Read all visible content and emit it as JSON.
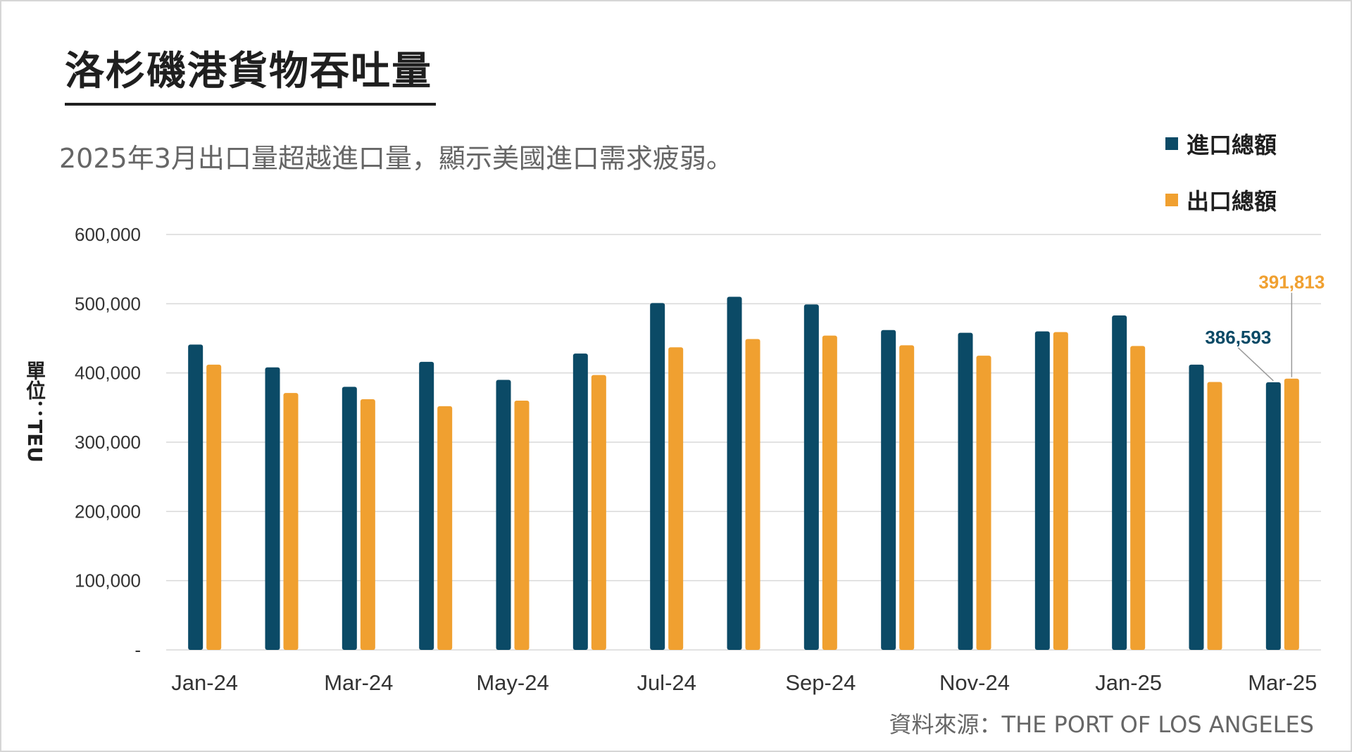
{
  "title": "洛杉磯港貨物吞吐量",
  "subtitle": "2025年3月出口量超越進口量，顯示美國進口需求疲弱。",
  "source": "資料來源：THE PORT OF LOS ANGELES",
  "colors": {
    "imports": "#0b4a66",
    "exports": "#f0a030",
    "grid": "#d9d9d9",
    "axis_text": "#333333"
  },
  "chart_data": {
    "type": "bar",
    "title": "洛杉磯港貨物吞吐量",
    "ylabel": "單位：TEU",
    "xlabel": "",
    "ylim": [
      0,
      600000
    ],
    "yticks": [
      0,
      100000,
      200000,
      300000,
      400000,
      500000,
      600000
    ],
    "ytick_labels": [
      "-",
      "100,000",
      "200,000",
      "300,000",
      "400,000",
      "500,000",
      "600,000"
    ],
    "grid": true,
    "legend_position": "top-right",
    "categories": [
      "Jan-24",
      "Feb-24",
      "Mar-24",
      "Apr-24",
      "May-24",
      "Jun-24",
      "Jul-24",
      "Aug-24",
      "Sep-24",
      "Oct-24",
      "Nov-24",
      "Dec-24",
      "Jan-25",
      "Feb-25",
      "Mar-25"
    ],
    "xtick_labels": [
      "Jan-24",
      "",
      "Mar-24",
      "",
      "May-24",
      "",
      "Jul-24",
      "",
      "Sep-24",
      "",
      "Nov-24",
      "",
      "Jan-25",
      "",
      "Mar-25"
    ],
    "series": [
      {
        "name": "進口總額",
        "color": "#0b4a66",
        "values": [
          441000,
          408000,
          380000,
          416000,
          390000,
          428000,
          501000,
          510000,
          499000,
          462000,
          458000,
          460000,
          483000,
          412000,
          386593
        ]
      },
      {
        "name": "出口總額",
        "color": "#f0a030",
        "values": [
          412000,
          371000,
          362000,
          352000,
          360000,
          397000,
          437000,
          449000,
          454000,
          440000,
          425000,
          459000,
          439000,
          387000,
          391813
        ]
      }
    ],
    "annotations": [
      {
        "series": 0,
        "category": "Mar-25",
        "text": "386,593"
      },
      {
        "series": 1,
        "category": "Mar-25",
        "text": "391,813"
      }
    ]
  }
}
